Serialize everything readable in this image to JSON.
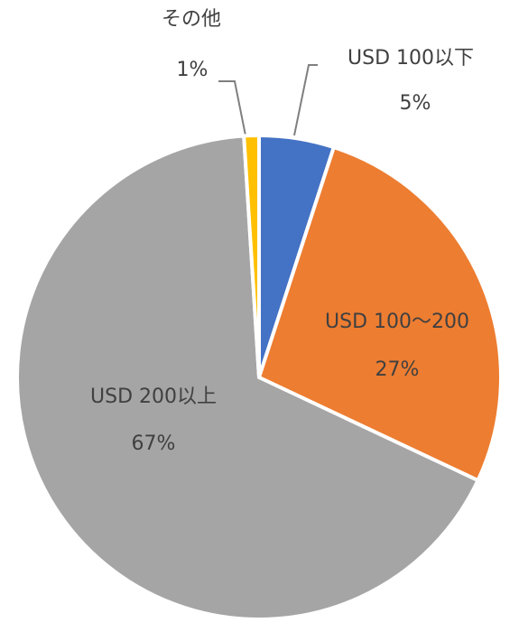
{
  "chart_data": {
    "type": "pie",
    "categories": [
      "USD 100以下",
      "USD 100～200",
      "USD 200以上",
      "その他"
    ],
    "values": [
      5,
      27,
      67,
      1
    ],
    "value_labels": [
      "5%",
      "27%",
      "67%",
      "1%"
    ],
    "colors": [
      "#4472c4",
      "#ed7d31",
      "#a5a5a5",
      "#ffc000"
    ]
  }
}
